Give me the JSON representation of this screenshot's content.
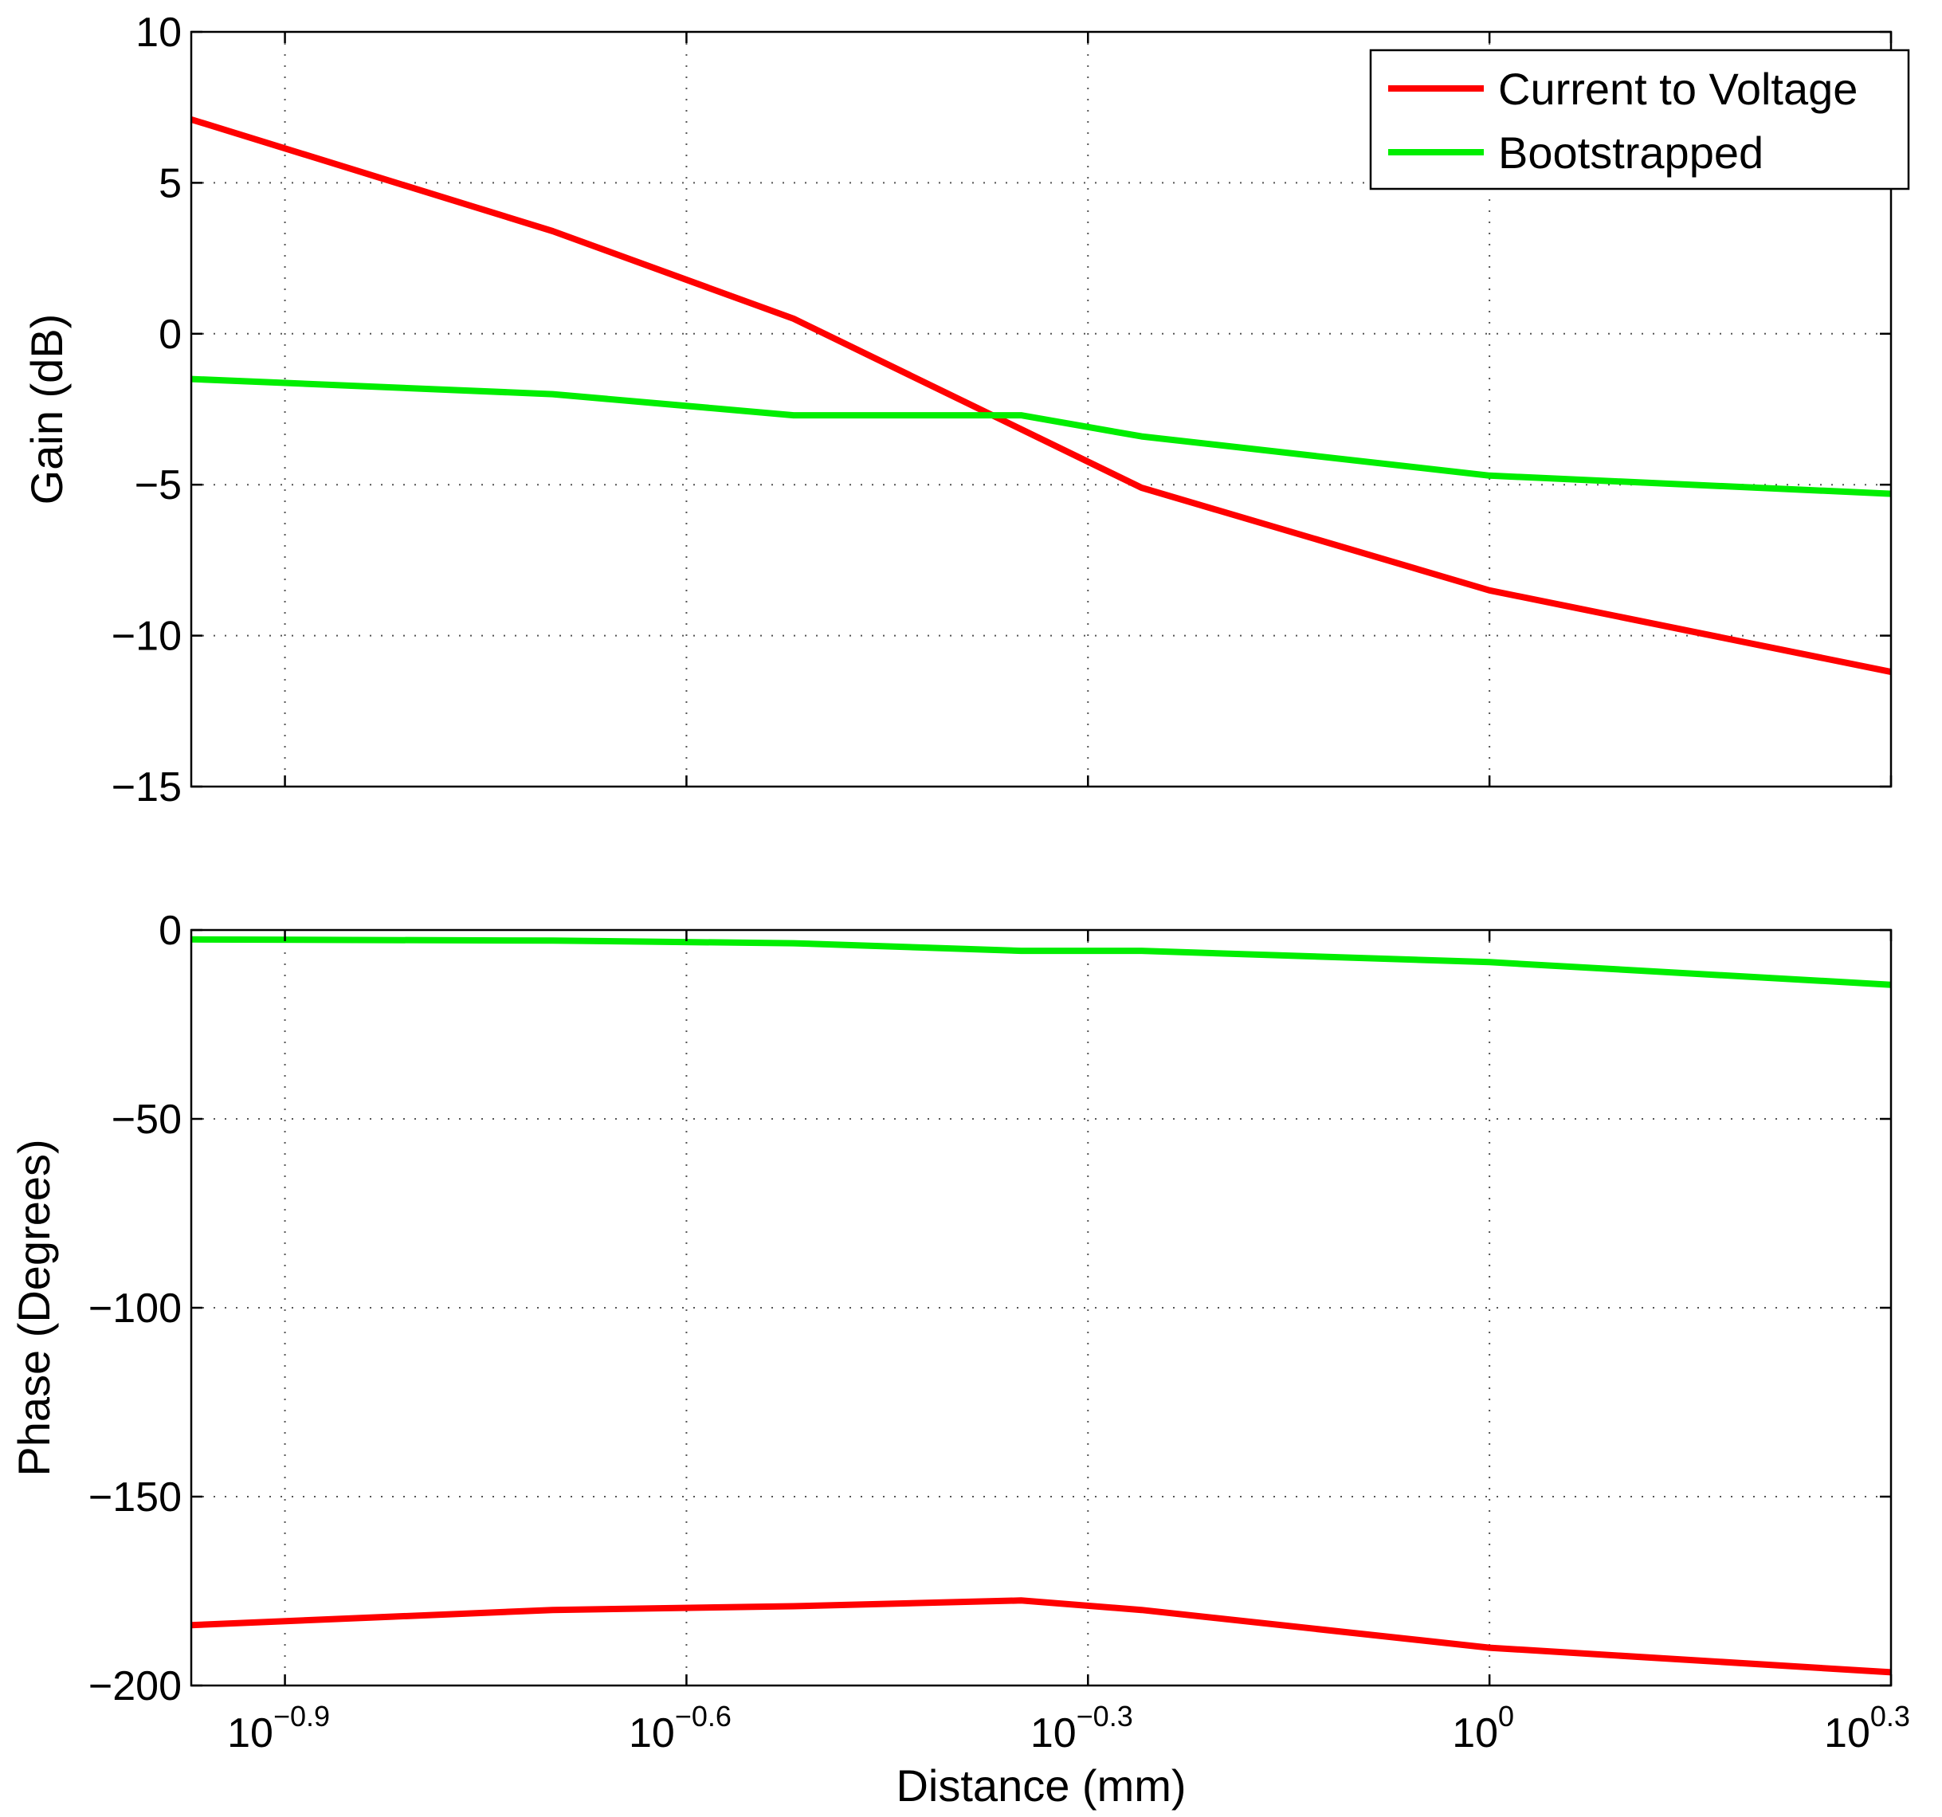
{
  "chart_data": [
    {
      "type": "line",
      "panel": "gain",
      "xscale": "log",
      "xlim_exp": [
        -0.97,
        0.3
      ],
      "ylim": [
        -15,
        10
      ],
      "yticks": [
        10,
        5,
        0,
        -5,
        -10,
        -15
      ],
      "ytick_labels": [
        "10",
        "5",
        "0",
        "−5",
        "−10",
        "−15"
      ],
      "xticks_exp": [
        -0.9,
        -0.6,
        -0.3,
        0,
        0.3
      ],
      "ylabel": "Gain (dB)",
      "grid": true,
      "legend": {
        "placement": "top-right",
        "entries": [
          "Current to Voltage",
          "Bootstrapped"
        ]
      },
      "series": [
        {
          "name": "Current to Voltage",
          "color": "#ff0000",
          "x_exp": [
            -0.97,
            -0.7,
            -0.52,
            -0.26,
            0,
            0.3
          ],
          "values": [
            7.1,
            3.4,
            0.5,
            -5.1,
            -8.5,
            -11.2
          ]
        },
        {
          "name": "Bootstrapped",
          "color": "#00ee00",
          "x_exp": [
            -0.97,
            -0.7,
            -0.52,
            -0.35,
            -0.26,
            0,
            0.3
          ],
          "values": [
            -1.5,
            -2.0,
            -2.7,
            -2.7,
            -3.4,
            -4.7,
            -5.3
          ]
        }
      ]
    },
    {
      "type": "line",
      "panel": "phase",
      "xscale": "log",
      "xlim_exp": [
        -0.97,
        0.3
      ],
      "ylim": [
        -200,
        0
      ],
      "yticks": [
        0,
        -50,
        -100,
        -150,
        -200
      ],
      "ytick_labels": [
        "0",
        "−50",
        "−100",
        "−150",
        "−200"
      ],
      "xticks_exp": [
        -0.9,
        -0.6,
        -0.3,
        0,
        0.3
      ],
      "xtick_labels": [
        {
          "base": "10",
          "exp": "−0.9"
        },
        {
          "base": "10",
          "exp": "−0.6"
        },
        {
          "base": "10",
          "exp": "−0.3"
        },
        {
          "base": "10",
          "exp": "0"
        },
        {
          "base": "10",
          "exp": "0.3"
        }
      ],
      "xlabel": "Distance (mm)",
      "ylabel": "Phase (Degrees)",
      "grid": true,
      "series": [
        {
          "name": "Current to Voltage",
          "color": "#ff0000",
          "x_exp": [
            -0.97,
            -0.7,
            -0.52,
            -0.35,
            -0.26,
            0,
            0.3
          ],
          "values": [
            -184,
            -180,
            -179,
            -177.5,
            -180,
            -190,
            -196.5
          ]
        },
        {
          "name": "Bootstrapped",
          "color": "#00ee00",
          "x_exp": [
            -0.97,
            -0.7,
            -0.52,
            -0.35,
            -0.26,
            0,
            0.3
          ],
          "values": [
            -2.5,
            -2.8,
            -3.5,
            -5.5,
            -5.5,
            -8.5,
            -14.5
          ]
        }
      ]
    }
  ]
}
